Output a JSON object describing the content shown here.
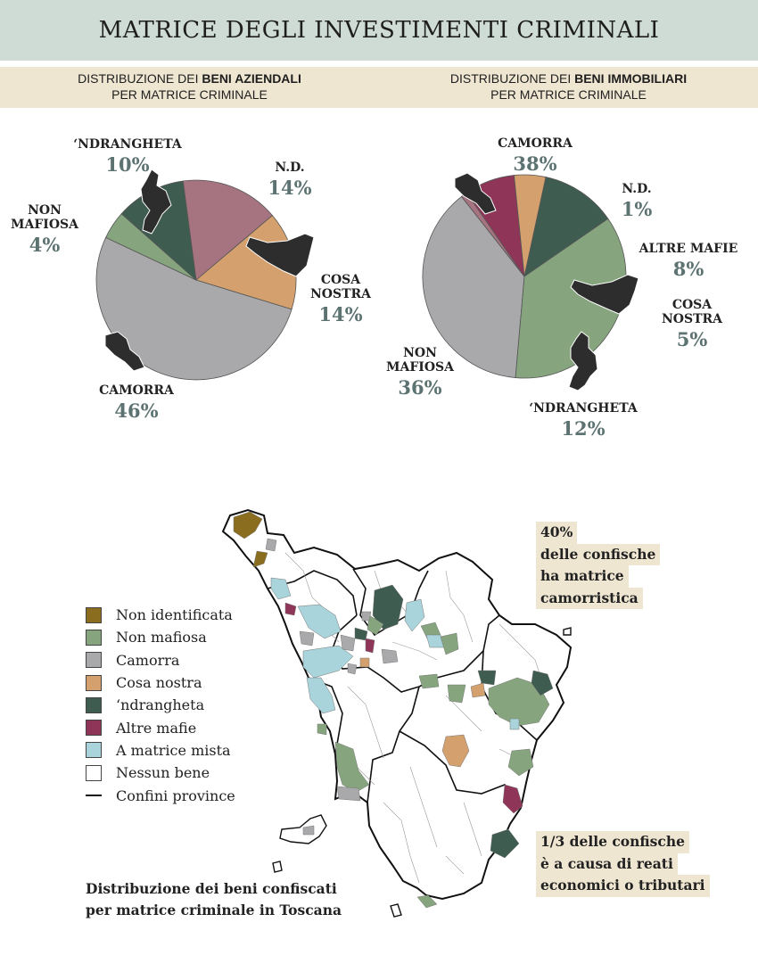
{
  "header": {
    "title": "MATRICE DEGLI INVESTIMENTI CRIMINALI"
  },
  "subtitles": {
    "left": {
      "prefix": "DISTRIBUZIONE DEI ",
      "bold": "BENI AZIENDALI",
      "line2": "PER MATRICE CRIMINALE"
    },
    "right": {
      "prefix": "DISTRIBUZIONE DEI ",
      "bold": "BENI IMMOBILIARI",
      "line2": "PER MATRICE CRIMINALE"
    }
  },
  "colors": {
    "non_identificata": "#8a6d1e",
    "non_mafiosa": "#86a57e",
    "camorra": "#a9a9ab",
    "cosa_nostra": "#d3a06e",
    "ndrangheta": "#3f5c50",
    "altre_mafie": "#8e3558",
    "mista": "#a9d4dc",
    "nd_pie": "#a57480",
    "nessun_bene": "#ffffff"
  },
  "chart_data": [
    {
      "type": "pie",
      "title": "DISTRIBUZIONE DEI BENI AZIENDALI PER MATRICE CRIMINALE",
      "slices": [
        {
          "label": "CAMORRA",
          "value": 46
        },
        {
          "label": "NON MAFIOSA",
          "value": 4
        },
        {
          "label": "‘NDRANGHETA",
          "value": 10
        },
        {
          "label": "N.D.",
          "value": 14
        },
        {
          "label": "COSA NOSTRA",
          "value": 14
        }
      ],
      "labels": [
        {
          "lines": [
            "‘NDRANGHETA"
          ],
          "pct": "10%"
        },
        {
          "lines": [
            "N.D."
          ],
          "pct": "14%"
        },
        {
          "lines": [
            "NON",
            "MAFIOSA"
          ],
          "pct": "4%"
        },
        {
          "lines": [
            "COSA",
            "NOSTRA"
          ],
          "pct": "14%"
        },
        {
          "lines": [
            "CAMORRA"
          ],
          "pct": "46%"
        }
      ]
    },
    {
      "type": "pie",
      "title": "DISTRIBUZIONE DEI BENI IMMOBILIARI PER MATRICE CRIMINALE",
      "slices": [
        {
          "label": "CAMORRA",
          "value": 38
        },
        {
          "label": "N.D.",
          "value": 1
        },
        {
          "label": "ALTRE MAFIE",
          "value": 8
        },
        {
          "label": "COSA NOSTRA",
          "value": 5
        },
        {
          "label": "‘NDRANGHETA",
          "value": 12
        },
        {
          "label": "NON MAFIOSA",
          "value": 36
        }
      ],
      "labels": [
        {
          "lines": [
            "CAMORRA"
          ],
          "pct": "38%"
        },
        {
          "lines": [
            "N.D."
          ],
          "pct": "1%"
        },
        {
          "lines": [
            "ALTRE MAFIE"
          ],
          "pct": "8%"
        },
        {
          "lines": [
            "COSA",
            "NOSTRA"
          ],
          "pct": "5%"
        },
        {
          "lines": [
            "NON",
            "MAFIOSA"
          ],
          "pct": "36%"
        },
        {
          "lines": [
            "‘NDRANGHETA"
          ],
          "pct": "12%"
        }
      ]
    }
  ],
  "map": {
    "legend": [
      {
        "label": "Non identificata",
        "color": "#8a6d1e"
      },
      {
        "label": "Non mafiosa",
        "color": "#86a57e"
      },
      {
        "label": "Camorra",
        "color": "#a9a9ab"
      },
      {
        "label": "Cosa nostra",
        "color": "#d3a06e"
      },
      {
        "label": "‘ndrangheta",
        "color": "#3f5c50"
      },
      {
        "label": "Altre mafie",
        "color": "#8e3558"
      },
      {
        "label": "A matrice mista",
        "color": "#a9d4dc"
      },
      {
        "label": "Nessun bene",
        "color": "#ffffff"
      },
      {
        "label": "Confini province",
        "color": "#111111"
      }
    ],
    "caption": [
      "Distribuzione dei beni confiscati",
      "per matrice criminale in Toscana"
    ],
    "note_top": [
      "40%",
      "delle confische",
      "ha matrice",
      "camorristica"
    ],
    "note_bottom": [
      "1/3 delle confische",
      "è a causa di reati",
      "economici o tributari"
    ]
  }
}
